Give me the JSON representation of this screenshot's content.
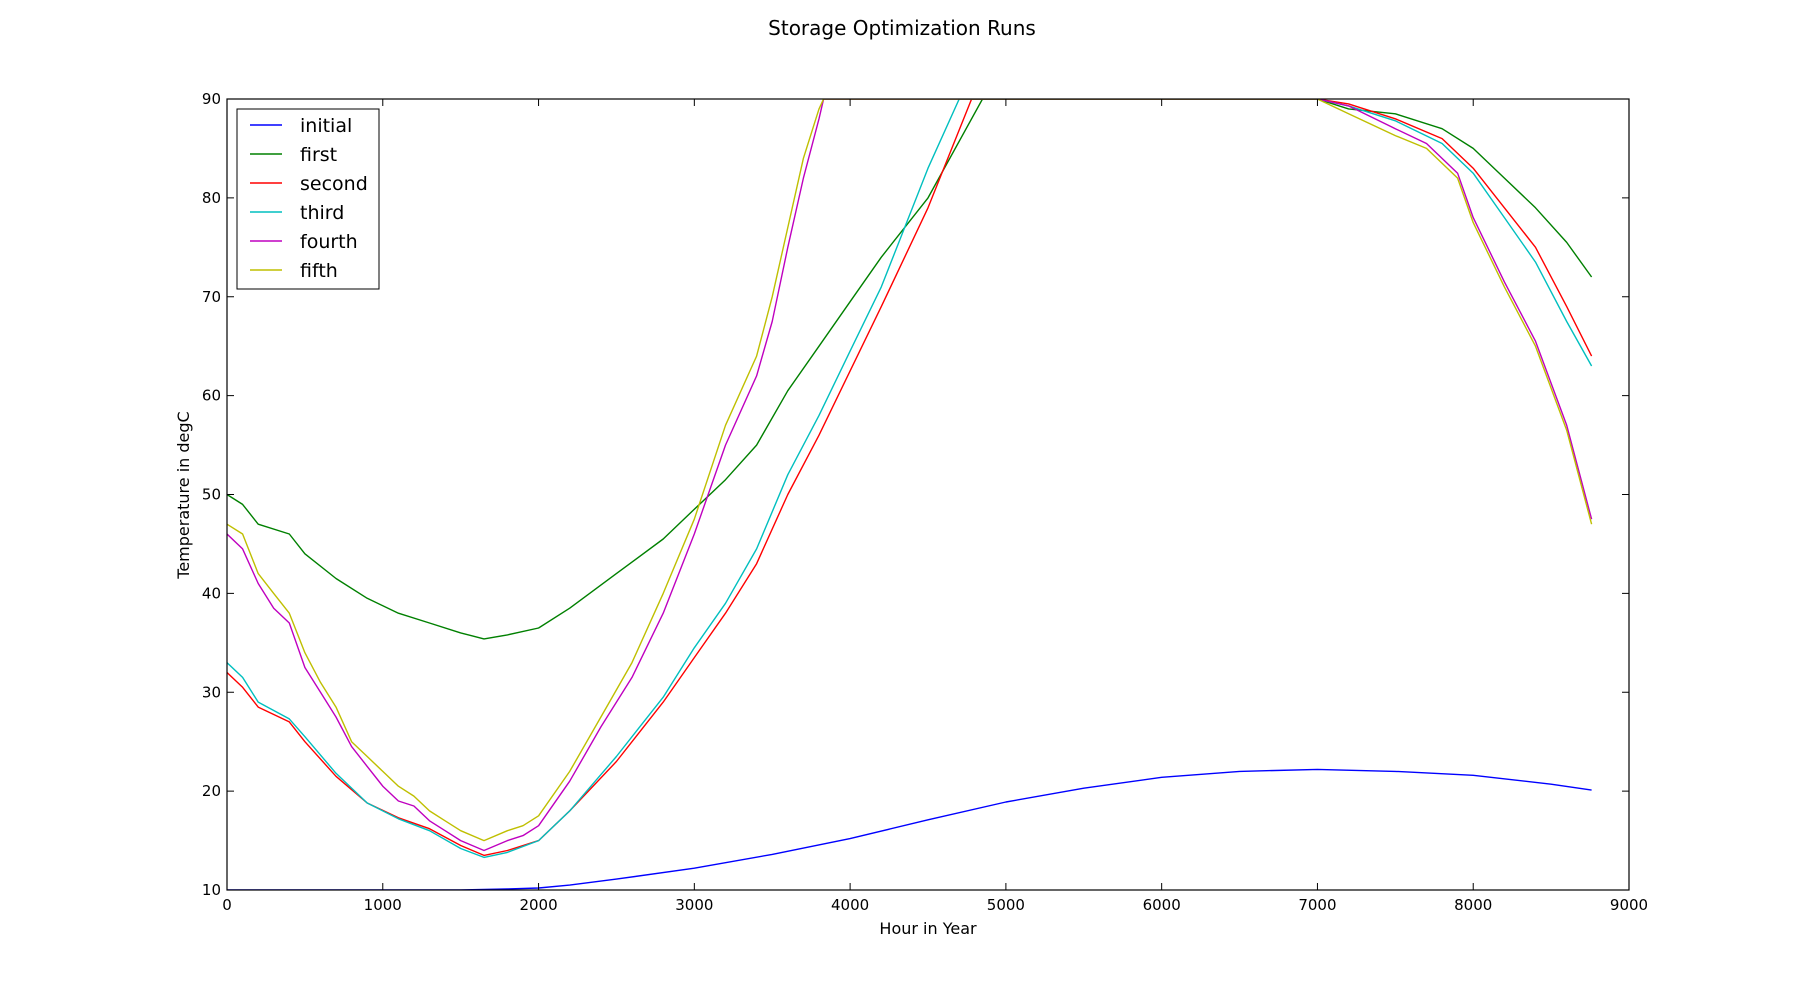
{
  "chart_data": {
    "type": "line",
    "title": "Storage Optimization Runs",
    "xlabel": "Hour in Year",
    "ylabel": "Temperature in degC",
    "xlim": [
      0,
      9000
    ],
    "ylim": [
      10,
      90
    ],
    "xticks": [
      0,
      1000,
      2000,
      3000,
      4000,
      5000,
      6000,
      7000,
      8000,
      9000
    ],
    "yticks": [
      10,
      20,
      30,
      40,
      50,
      60,
      70,
      80,
      90
    ],
    "grid": false,
    "legend_position": "upper-left",
    "series": [
      {
        "name": "initial",
        "color": "#0000ff",
        "x": [
          0,
          500,
          1000,
          1500,
          1800,
          2000,
          2200,
          2500,
          3000,
          3500,
          4000,
          4500,
          5000,
          5500,
          6000,
          6500,
          7000,
          7500,
          8000,
          8500,
          8760
        ],
        "y": [
          10,
          10,
          10,
          10,
          10.1,
          10.2,
          10.5,
          11.1,
          12.2,
          13.6,
          15.2,
          17.1,
          18.9,
          20.3,
          21.4,
          22.0,
          22.2,
          22.0,
          21.6,
          20.7,
          20.1
        ]
      },
      {
        "name": "first",
        "color": "#008000",
        "x": [
          0,
          100,
          200,
          400,
          500,
          700,
          900,
          1100,
          1300,
          1500,
          1650,
          1800,
          2000,
          2200,
          2500,
          2800,
          3000,
          3200,
          3400,
          3600,
          3800,
          4000,
          4200,
          4500,
          4850,
          5000,
          7000,
          7200,
          7500,
          7800,
          8000,
          8200,
          8400,
          8600,
          8760
        ],
        "y": [
          50,
          49,
          47,
          46,
          44,
          41.5,
          39.5,
          38,
          37,
          36,
          35.4,
          35.8,
          36.5,
          38.5,
          42,
          45.5,
          48.5,
          51.5,
          55,
          60.5,
          65,
          69.5,
          74,
          80,
          90,
          90,
          90,
          89,
          88.5,
          87,
          85,
          82,
          79,
          75.5,
          72
        ]
      },
      {
        "name": "second",
        "color": "#ff0000",
        "x": [
          0,
          100,
          200,
          400,
          500,
          700,
          900,
          1100,
          1300,
          1500,
          1650,
          1800,
          2000,
          2200,
          2500,
          2800,
          3000,
          3200,
          3400,
          3600,
          3800,
          4000,
          4200,
          4500,
          4780,
          5000,
          7000,
          7200,
          7500,
          7800,
          8000,
          8200,
          8400,
          8600,
          8760
        ],
        "y": [
          32,
          30.5,
          28.5,
          27,
          25,
          21.5,
          18.8,
          17.3,
          16.2,
          14.5,
          13.5,
          14,
          15,
          18,
          23,
          29,
          33.5,
          38,
          43,
          50,
          56,
          62.5,
          69,
          79,
          90,
          90,
          90,
          89.5,
          88,
          86,
          83,
          79,
          75,
          69,
          64
        ]
      },
      {
        "name": "third",
        "color": "#00bfbf",
        "x": [
          0,
          100,
          200,
          400,
          500,
          700,
          900,
          1100,
          1300,
          1500,
          1650,
          1800,
          2000,
          2200,
          2500,
          2800,
          3000,
          3200,
          3400,
          3600,
          3800,
          4000,
          4200,
          4500,
          4700,
          5000,
          7000,
          7200,
          7500,
          7800,
          8000,
          8200,
          8400,
          8600,
          8760
        ],
        "y": [
          33,
          31.5,
          29,
          27.3,
          25.5,
          21.8,
          18.8,
          17.2,
          16,
          14.2,
          13.3,
          13.8,
          15,
          18,
          23.5,
          29.5,
          34.5,
          39,
          44.5,
          52,
          58,
          64.5,
          71,
          83,
          90,
          90,
          90,
          89.3,
          87.8,
          85.5,
          82.5,
          78,
          73.5,
          67.5,
          63
        ]
      },
      {
        "name": "fourth",
        "color": "#bf00bf",
        "x": [
          0,
          100,
          200,
          300,
          400,
          500,
          600,
          700,
          800,
          900,
          1000,
          1100,
          1200,
          1300,
          1400,
          1500,
          1650,
          1800,
          1900,
          2000,
          2200,
          2400,
          2600,
          2800,
          3000,
          3200,
          3400,
          3500,
          3600,
          3700,
          3800,
          3830,
          5000,
          7000,
          7200,
          7500,
          7700,
          7900,
          8000,
          8200,
          8400,
          8600,
          8760
        ],
        "y": [
          46,
          44.5,
          41,
          38.5,
          37,
          32.5,
          30,
          27.5,
          24.5,
          22.5,
          20.5,
          19,
          18.5,
          17,
          16,
          15,
          14,
          15,
          15.5,
          16.5,
          21,
          26.5,
          31.5,
          38,
          46,
          55,
          62,
          67.5,
          75,
          82,
          88,
          90,
          90,
          90,
          89.3,
          87,
          85.5,
          82.5,
          78,
          71.5,
          65.5,
          57,
          47.5
        ]
      },
      {
        "name": "fifth",
        "color": "#bfbf00",
        "x": [
          0,
          100,
          200,
          300,
          400,
          500,
          600,
          700,
          800,
          900,
          1000,
          1100,
          1200,
          1300,
          1400,
          1500,
          1650,
          1800,
          1900,
          2000,
          2200,
          2400,
          2600,
          2800,
          3000,
          3200,
          3400,
          3500,
          3600,
          3700,
          3800,
          3830,
          5000,
          7000,
          7200,
          7500,
          7700,
          7900,
          8000,
          8200,
          8400,
          8600,
          8760
        ],
        "y": [
          47,
          46,
          42,
          40,
          38,
          34,
          31,
          28.5,
          25,
          23.5,
          22,
          20.5,
          19.5,
          18,
          17,
          16,
          15,
          16,
          16.5,
          17.5,
          22,
          27.5,
          33,
          40,
          47.5,
          57,
          64,
          70,
          77,
          84,
          89,
          90,
          90,
          90,
          88.5,
          86.3,
          85,
          82,
          77.5,
          71,
          65,
          56.5,
          47
        ]
      }
    ]
  }
}
